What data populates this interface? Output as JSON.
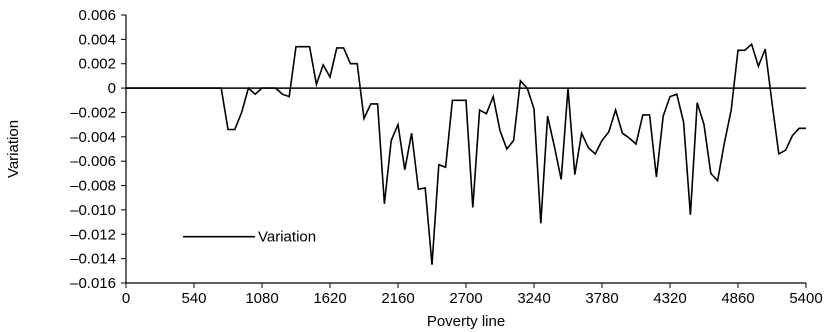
{
  "chart_data": {
    "type": "line",
    "title": "",
    "xlabel": "Poverty line",
    "ylabel": "Variation",
    "xlim": [
      0,
      5400
    ],
    "ylim": [
      -0.016,
      0.006
    ],
    "xticks": [
      0,
      540,
      1080,
      1620,
      2160,
      2700,
      3240,
      3780,
      4320,
      4860,
      5400
    ],
    "xtick_labels": [
      "0",
      "540",
      "1080",
      "1620",
      "2160",
      "2700",
      "3240",
      "3780",
      "4320",
      "4860",
      "5400"
    ],
    "yticks": [
      0.006,
      0.004,
      0.002,
      0,
      -0.002,
      -0.004,
      -0.006,
      -0.008,
      -0.01,
      -0.012,
      -0.014,
      -0.016
    ],
    "ytick_labels": [
      "0.006",
      "0.004",
      "0.002",
      "0",
      "–0.002",
      "–0.004",
      "–0.006",
      "–0.008",
      "–0.010",
      "–0.012",
      "–0.014",
      "–0.016"
    ],
    "grid": false,
    "legend": {
      "position": "lower-left",
      "entries": [
        "Variation"
      ]
    },
    "reference_line": {
      "y": 0
    },
    "series": [
      {
        "name": "Variation",
        "color": "#000000",
        "x": [
          0,
          54,
          108,
          162,
          216,
          270,
          324,
          378,
          432,
          486,
          540,
          594,
          648,
          702,
          756,
          810,
          864,
          918,
          972,
          1026,
          1080,
          1134,
          1188,
          1242,
          1296,
          1350,
          1404,
          1458,
          1512,
          1566,
          1620,
          1674,
          1728,
          1782,
          1836,
          1890,
          1944,
          1998,
          2052,
          2106,
          2160,
          2214,
          2268,
          2322,
          2376,
          2430,
          2484,
          2538,
          2592,
          2646,
          2700,
          2754,
          2808,
          2862,
          2916,
          2970,
          3024,
          3078,
          3132,
          3186,
          3240,
          3294,
          3348,
          3402,
          3456,
          3510,
          3564,
          3618,
          3672,
          3726,
          3780,
          3834,
          3888,
          3942,
          3996,
          4050,
          4104,
          4158,
          4212,
          4266,
          4320,
          4374,
          4428,
          4482,
          4536,
          4590,
          4644,
          4698,
          4752,
          4806,
          4860,
          4914,
          4968,
          5022,
          5076,
          5130,
          5184,
          5238,
          5292,
          5346,
          5400
        ],
        "y": [
          0,
          0,
          0,
          0,
          0,
          0,
          0,
          0,
          0,
          0,
          0,
          0,
          0,
          0,
          0,
          -0.0034,
          -0.0034,
          -0.002,
          0,
          -0.0005,
          0,
          0,
          0,
          -0.0005,
          -0.0007,
          0.0034,
          0.0034,
          0.0034,
          0.0003,
          0.0019,
          0.0009,
          0.0033,
          0.0033,
          0.002,
          0.002,
          -0.0025,
          -0.0013,
          -0.0013,
          -0.0095,
          -0.0043,
          -0.003,
          -0.0067,
          -0.0037,
          -0.0083,
          -0.0082,
          -0.0145,
          -0.0063,
          -0.0065,
          -0.001,
          -0.001,
          -0.001,
          -0.0098,
          -0.0018,
          -0.0021,
          -0.0007,
          -0.0035,
          -0.005,
          -0.0043,
          0.0006,
          0.0,
          -0.0017,
          -0.0111,
          -0.0023,
          -0.0048,
          -0.0075,
          0.0,
          -0.0071,
          -0.0037,
          -0.0049,
          -0.0054,
          -0.0043,
          -0.0036,
          -0.0018,
          -0.0037,
          -0.0041,
          -0.0046,
          -0.0022,
          -0.0022,
          -0.0073,
          -0.0023,
          -0.0007,
          -0.0005,
          -0.0028,
          -0.0104,
          -0.0012,
          -0.003,
          -0.007,
          -0.0076,
          -0.0045,
          -0.0018,
          0.0031,
          0.0031,
          0.0036,
          0.0018,
          0.0032,
          -0.0012,
          -0.0054,
          -0.0051,
          -0.0039,
          -0.0033,
          -0.0033
        ]
      }
    ]
  }
}
